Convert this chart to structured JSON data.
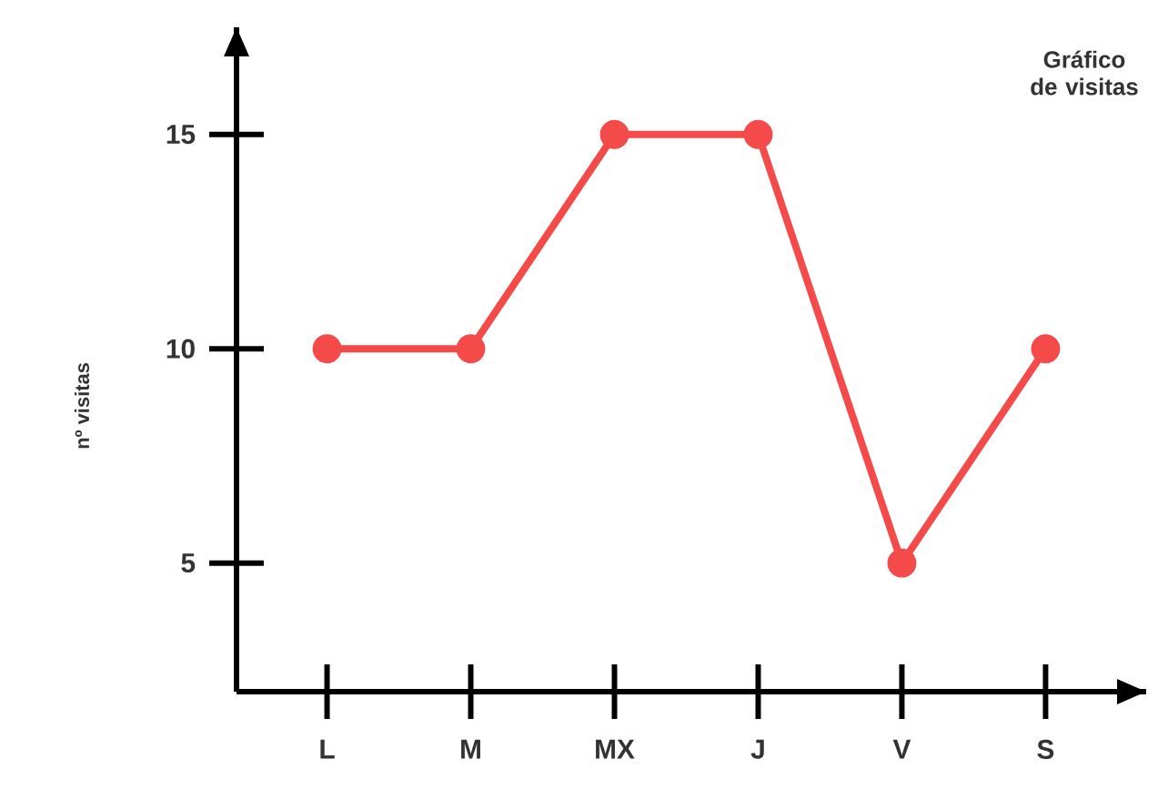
{
  "chart_data": {
    "type": "line",
    "title": "Gráfico de visitas",
    "ylabel": "nº visitas",
    "categories": [
      "L",
      "M",
      "MX",
      "J",
      "V",
      "S"
    ],
    "series": [
      {
        "color": "#f44a4a",
        "values": [
          10,
          10,
          15,
          15,
          5,
          10
        ]
      }
    ],
    "ylim": [
      2,
      17.5
    ],
    "yticks": [
      5,
      10,
      15
    ],
    "marker": "circle",
    "line_style": "solid"
  }
}
